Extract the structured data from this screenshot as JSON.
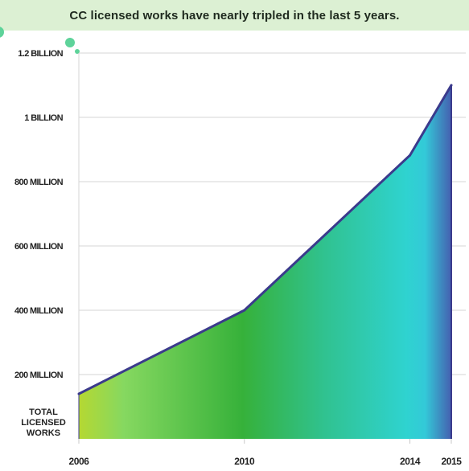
{
  "banner": {
    "title": "CC licensed works have nearly tripled in the last 5 years."
  },
  "side_label": [
    "TOTAL",
    "LICENSED",
    "WORKS"
  ],
  "colors": {
    "banner_bg": "#dcf0d3",
    "line": "#3b3a8c",
    "gradient": [
      "#b5d832",
      "#86d860",
      "#36b13a",
      "#30c290",
      "#2fd3d0",
      "#33c9d8",
      "#4560b0"
    ],
    "dots": "#5ed39a"
  },
  "chart_data": {
    "type": "area",
    "title": "CC licensed works have nearly tripled in the last 5 years.",
    "xlabel": "",
    "ylabel": "TOTAL LICENSED WORKS",
    "x": [
      2006,
      2010,
      2014,
      2015
    ],
    "x_tick_labels": [
      "2006",
      "2010",
      "2014",
      "2015"
    ],
    "series": [
      {
        "values": [
          140000000,
          400000000,
          882000000,
          1100000000
        ]
      }
    ],
    "ylim": [
      0,
      1200000000
    ],
    "xlim": [
      2006,
      2015
    ],
    "y_ticks": [
      200000000,
      400000000,
      600000000,
      800000000,
      1000000000,
      1200000000
    ],
    "y_tick_labels": [
      "200 MILLION",
      "400 MILLION",
      "600 MILLION",
      "800 MILLION",
      "1 BILLION",
      "1.2 BILLION"
    ],
    "grid": true
  }
}
